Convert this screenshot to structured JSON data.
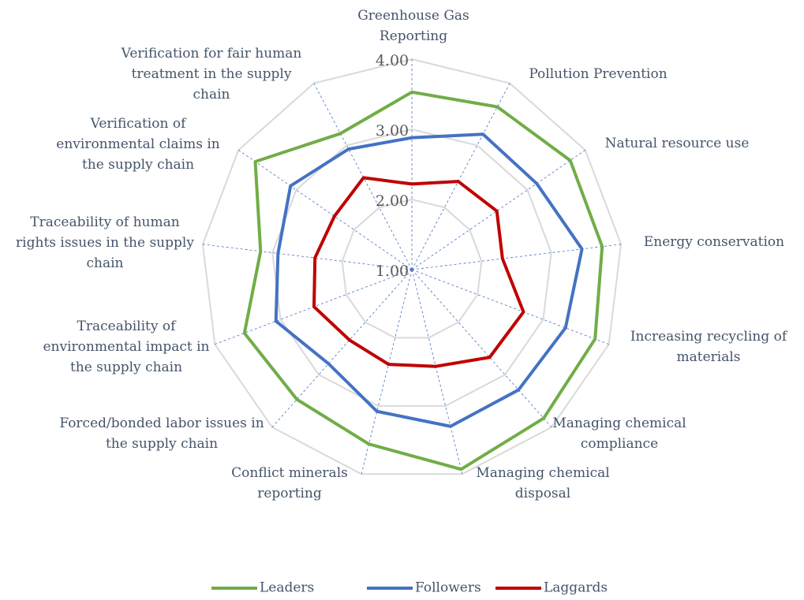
{
  "chart_data": {
    "type": "radar",
    "categories": [
      "Greenhouse Gas Reporting",
      "Pollution Prevention",
      "Natural resource use",
      "Energy conservation",
      "Increasing recycling of materials",
      "Managing chemical compliance",
      "Managing chemical disposal",
      "Conflict minerals reporting",
      "Forced/bonded labor issues in the supply chain",
      "Traceability of environmental impact in the supply chain",
      "Traceability of human rights issues in the supply chain",
      "Verification of environmental claims in the supply chain",
      "Verification for fair human treatment in the supply chain"
    ],
    "series": [
      {
        "name": "Leaders",
        "color": "#70ad47",
        "values": [
          3.53,
          3.62,
          3.74,
          3.73,
          3.79,
          3.83,
          3.93,
          3.56,
          3.47,
          3.55,
          3.17,
          3.71,
          3.19
        ]
      },
      {
        "name": "Followers",
        "color": "#4472c4",
        "values": [
          2.88,
          3.18,
          3.16,
          3.44,
          3.34,
          3.29,
          3.3,
          3.08,
          2.79,
          3.07,
          2.92,
          3.1,
          2.94
        ]
      },
      {
        "name": "Laggards",
        "color": "#c00000",
        "values": [
          2.22,
          2.42,
          2.47,
          2.3,
          2.7,
          2.67,
          2.42,
          2.39,
          2.34,
          2.49,
          2.39,
          2.34,
          2.48
        ]
      }
    ],
    "ylim": [
      1,
      4
    ],
    "yticks": [
      {
        "value": 1,
        "label": "1.00"
      },
      {
        "value": 2,
        "label": "2.00"
      },
      {
        "value": 3,
        "label": "3.00"
      },
      {
        "value": 4,
        "label": "4.00"
      }
    ],
    "grid": true,
    "legend": "bottom"
  }
}
